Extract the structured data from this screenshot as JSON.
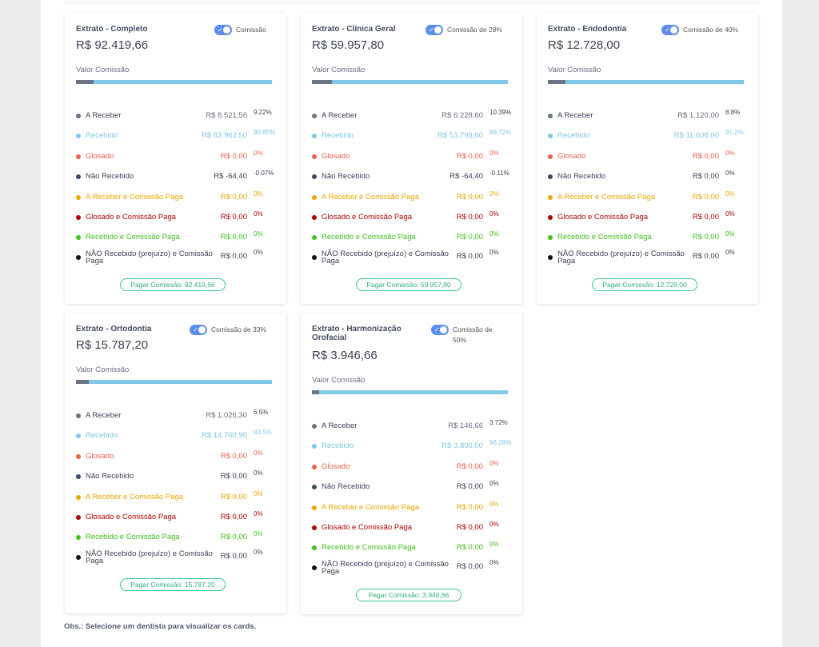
{
  "colors": {
    "a_receber": "#6c7585",
    "recebido": "#7fc8e6",
    "glosado": "#f0614a",
    "nao_recebido": "#3b4a66",
    "a_receber_comissao": "#f0a500",
    "glosado_comissao": "#b20000",
    "recebido_comissao": "#3fc21c",
    "nao_recebido_prejuizo": "#111111",
    "toggle": "#5b8def",
    "pay_button": "#36c98a"
  },
  "labels": {
    "valor_comissao": "Valor Comissão",
    "a_receber": "A Receber",
    "recebido": "Recebido",
    "glosado": "Glosado",
    "nao_recebido": "Não Recebido",
    "a_receber_comissao": "A Receber e Comissão Paga",
    "glosado_comissao": "Glosado e Comissão Paga",
    "recebido_comissao": "Recebido e Comissão Paga",
    "nao_recebido_prejuizo": "NÃO Recebido (prejuízo) e Comissão Paga"
  },
  "cards": [
    {
      "title": "Extrato - Completo",
      "toggle_label": "Comissão",
      "amount": "R$ 92.419,66",
      "bar_fraction": 0.09,
      "rows": [
        {
          "key": "a_receber",
          "value": "R$ 8.521,56",
          "pct": "9.22%"
        },
        {
          "key": "recebido",
          "value": "R$ 83.962,50",
          "pct": "90.85%"
        },
        {
          "key": "glosado",
          "value": "R$ 0,00",
          "pct": "0%"
        },
        {
          "key": "nao_recebido",
          "value": "R$ -64,40",
          "pct": "-0.07%"
        },
        {
          "key": "a_receber_comissao",
          "value": "R$ 0,00",
          "pct": "0%"
        },
        {
          "key": "glosado_comissao",
          "value": "R$ 0,00",
          "pct": "0%"
        },
        {
          "key": "recebido_comissao",
          "value": "R$ 0,00",
          "pct": "0%"
        },
        {
          "key": "nao_recebido_prejuizo",
          "value": "R$ 0,00",
          "pct": "0%"
        }
      ],
      "pay_label": "Pagar Comissão: 92.419,66"
    },
    {
      "title": "Extrato - Clínica Geral",
      "toggle_label": "Comissão de 28%",
      "amount": "R$ 59.957,80",
      "bar_fraction": 0.1,
      "rows": [
        {
          "key": "a_receber",
          "value": "R$ 6.228,60",
          "pct": "10.39%"
        },
        {
          "key": "recebido",
          "value": "R$ 53.793,60",
          "pct": "89.72%"
        },
        {
          "key": "glosado",
          "value": "R$ 0,00",
          "pct": "0%"
        },
        {
          "key": "nao_recebido",
          "value": "R$ -64,40",
          "pct": "-0.11%"
        },
        {
          "key": "a_receber_comissao",
          "value": "R$ 0,00",
          "pct": "0%"
        },
        {
          "key": "glosado_comissao",
          "value": "R$ 0,00",
          "pct": "0%"
        },
        {
          "key": "recebido_comissao",
          "value": "R$ 0,00",
          "pct": "0%"
        },
        {
          "key": "nao_recebido_prejuizo",
          "value": "R$ 0,00",
          "pct": "0%"
        }
      ],
      "pay_label": "Pagar Comissão: 59.957,80"
    },
    {
      "title": "Extrato - Endodontia",
      "toggle_label": "Comissão de 40%",
      "amount": "R$ 12.728,00",
      "bar_fraction": 0.088,
      "rows": [
        {
          "key": "a_receber",
          "value": "R$ 1.120,00",
          "pct": "8.8%"
        },
        {
          "key": "recebido",
          "value": "R$ 11.608,00",
          "pct": "91.2%"
        },
        {
          "key": "glosado",
          "value": "R$ 0,00",
          "pct": "0%"
        },
        {
          "key": "nao_recebido",
          "value": "R$ 0,00",
          "pct": "0%"
        },
        {
          "key": "a_receber_comissao",
          "value": "R$ 0,00",
          "pct": "0%"
        },
        {
          "key": "glosado_comissao",
          "value": "R$ 0,00",
          "pct": "0%"
        },
        {
          "key": "recebido_comissao",
          "value": "R$ 0,00",
          "pct": "0%"
        },
        {
          "key": "nao_recebido_prejuizo",
          "value": "R$ 0,00",
          "pct": "0%"
        }
      ],
      "pay_label": "Pagar Comissão: 12.728,00"
    },
    {
      "title": "Extrato - Ortodontia",
      "toggle_label": "Comissão de 33%",
      "amount": "R$ 15.787,20",
      "bar_fraction": 0.065,
      "rows": [
        {
          "key": "a_receber",
          "value": "R$ 1.026,30",
          "pct": "6.5%"
        },
        {
          "key": "recebido",
          "value": "R$ 14.760,90",
          "pct": "93.5%"
        },
        {
          "key": "glosado",
          "value": "R$ 0,00",
          "pct": "0%"
        },
        {
          "key": "nao_recebido",
          "value": "R$ 0,00",
          "pct": "0%"
        },
        {
          "key": "a_receber_comissao",
          "value": "R$ 0,00",
          "pct": "0%"
        },
        {
          "key": "glosado_comissao",
          "value": "R$ 0,00",
          "pct": "0%"
        },
        {
          "key": "recebido_comissao",
          "value": "R$ 0,00",
          "pct": "0%"
        },
        {
          "key": "nao_recebido_prejuizo",
          "value": "R$ 0,00",
          "pct": "0%"
        }
      ],
      "pay_label": "Pagar Comissão: 15.787,20"
    },
    {
      "title": "Extrato - Harmonização Orofacial",
      "toggle_label": "Comissão de 50%",
      "amount": "R$ 3.946,66",
      "bar_fraction": 0.037,
      "rows": [
        {
          "key": "a_receber",
          "value": "R$ 146,66",
          "pct": "3.72%"
        },
        {
          "key": "recebido",
          "value": "R$ 3.800,00",
          "pct": "96.28%"
        },
        {
          "key": "glosado",
          "value": "R$ 0,00",
          "pct": "0%"
        },
        {
          "key": "nao_recebido",
          "value": "R$ 0,00",
          "pct": "0%"
        },
        {
          "key": "a_receber_comissao",
          "value": "R$ 0,00",
          "pct": "0%"
        },
        {
          "key": "glosado_comissao",
          "value": "R$ 0,00",
          "pct": "0%"
        },
        {
          "key": "recebido_comissao",
          "value": "R$ 0,00",
          "pct": "0%"
        },
        {
          "key": "nao_recebido_prejuizo",
          "value": "R$ 0,00",
          "pct": "0%"
        }
      ],
      "pay_label": "Pagar Comissão: 3.946,66"
    }
  ],
  "obs": "Obs.: Selecione um dentista para visualizar os cards."
}
